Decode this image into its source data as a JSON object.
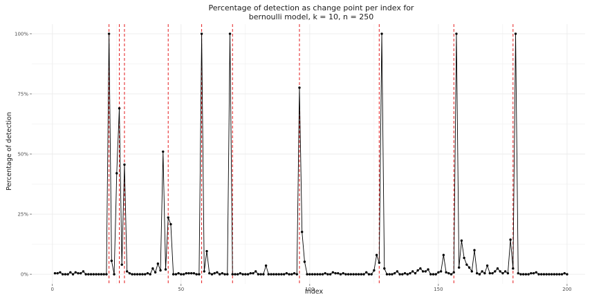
{
  "chart_data": {
    "type": "line",
    "title": "Percentage of detection as change point per index for",
    "subtitle": "bernoulli model, k = 10, n = 250",
    "xlabel": "Index",
    "ylabel": "Percentage of detection",
    "xlim": [
      -8,
      207
    ],
    "ylim": [
      -0.04,
      1.04
    ],
    "x_ticks": [
      0,
      50,
      100,
      150,
      200
    ],
    "x_tick_labels": [
      "0",
      "50",
      "100",
      "150",
      "200"
    ],
    "y_ticks": [
      0,
      0.25,
      0.5,
      0.75,
      1
    ],
    "y_tick_labels": [
      "0%",
      "25%",
      "50%",
      "75%",
      "100%"
    ],
    "grid": true,
    "legend": "none",
    "series": [
      {
        "x": [
          1,
          2,
          3,
          4,
          5,
          6,
          7,
          8,
          9,
          10,
          11,
          12,
          13,
          14,
          15,
          16,
          17,
          18,
          19,
          20,
          21,
          22,
          23,
          24,
          25,
          26,
          27,
          28,
          29,
          30,
          31,
          32,
          33,
          34,
          35,
          36,
          37,
          38,
          39,
          40,
          41,
          42,
          43,
          44,
          45,
          46,
          47,
          48,
          49,
          50,
          51,
          52,
          53,
          54,
          55,
          56,
          57,
          58,
          59,
          60,
          61,
          62,
          63,
          64,
          65,
          66,
          67,
          68,
          69,
          70,
          71,
          72,
          73,
          74,
          75,
          76,
          77,
          78,
          79,
          80,
          81,
          82,
          83,
          84,
          85,
          86,
          87,
          88,
          89,
          90,
          91,
          92,
          93,
          94,
          95,
          96,
          97,
          98,
          99,
          100,
          101,
          102,
          103,
          104,
          105,
          106,
          107,
          108,
          109,
          110,
          111,
          112,
          113,
          114,
          115,
          116,
          117,
          118,
          119,
          120,
          121,
          122,
          123,
          124,
          125,
          126,
          127,
          128,
          129,
          130,
          131,
          132,
          133,
          134,
          135,
          136,
          137,
          138,
          139,
          140,
          141,
          142,
          143,
          144,
          145,
          146,
          147,
          148,
          149,
          150,
          151,
          152,
          153,
          154,
          155,
          156,
          157,
          158,
          159,
          160,
          161,
          162,
          163,
          164,
          165,
          166,
          167,
          168,
          169,
          170,
          171,
          172,
          173,
          174,
          175,
          176,
          177,
          178,
          179,
          180,
          181,
          182,
          183,
          184,
          185,
          186,
          187,
          188,
          189,
          190,
          191,
          192,
          193,
          194,
          195,
          196,
          197,
          198,
          199,
          200
        ],
        "values": [
          0.004,
          0.004,
          0.008,
          0,
          0,
          0,
          0.008,
          0,
          0.008,
          0.004,
          0.004,
          0.012,
          0,
          0,
          0,
          0,
          0,
          0,
          0,
          0,
          0,
          1,
          0.056,
          0,
          0.42,
          0.69,
          0.04,
          0.456,
          0.012,
          0.004,
          0,
          0,
          0,
          0,
          0,
          0,
          0.004,
          0,
          0.024,
          0.008,
          0.044,
          0.016,
          0.51,
          0.02,
          0.236,
          0.208,
          0,
          0,
          0.004,
          0,
          0,
          0.004,
          0.004,
          0.004,
          0.004,
          0,
          0,
          1,
          0.012,
          0.096,
          0.004,
          0,
          0.004,
          0.008,
          0,
          0.004,
          0,
          0,
          1,
          0,
          0,
          0,
          0.004,
          0,
          0,
          0,
          0.004,
          0.004,
          0.012,
          0,
          0,
          0,
          0.036,
          0,
          0,
          0,
          0,
          0,
          0,
          0,
          0.004,
          0,
          0,
          0.004,
          0,
          0.776,
          0.176,
          0.052,
          0,
          0,
          0,
          0,
          0,
          0,
          0,
          0.004,
          0,
          0,
          0.008,
          0.004,
          0.004,
          0,
          0.004,
          0,
          0,
          0,
          0,
          0,
          0,
          0,
          0,
          0.008,
          0,
          0,
          0.016,
          0.08,
          0.048,
          1,
          0.024,
          0,
          0,
          0,
          0.004,
          0.012,
          0,
          0,
          0.004,
          0,
          0.004,
          0.012,
          0.004,
          0.016,
          0.024,
          0.012,
          0.012,
          0.02,
          0,
          0,
          0,
          0.008,
          0.012,
          0.08,
          0.008,
          0.004,
          0,
          0.008,
          1,
          0.028,
          0.14,
          0.068,
          0.04,
          0.028,
          0.012,
          0.1,
          0.004,
          0,
          0.012,
          0.004,
          0.036,
          0.004,
          0.004,
          0.012,
          0.024,
          0.012,
          0.004,
          0.012,
          0.004,
          0.144,
          0.024,
          1,
          0.004,
          0,
          0,
          0,
          0,
          0.004,
          0.004,
          0.008,
          0,
          0,
          0,
          0,
          0,
          0,
          0,
          0,
          0,
          0,
          0.004,
          0
        ]
      }
    ],
    "true_change_points": [
      22,
      26,
      28,
      45,
      58,
      70,
      96,
      127,
      156,
      179
    ],
    "colors": {
      "line": "#000000",
      "point": "#000000",
      "change_point_line": "#e41a1c",
      "grid": "#ebebeb",
      "text": "#1a1a1a",
      "tick_text": "#4d4d4d"
    }
  }
}
